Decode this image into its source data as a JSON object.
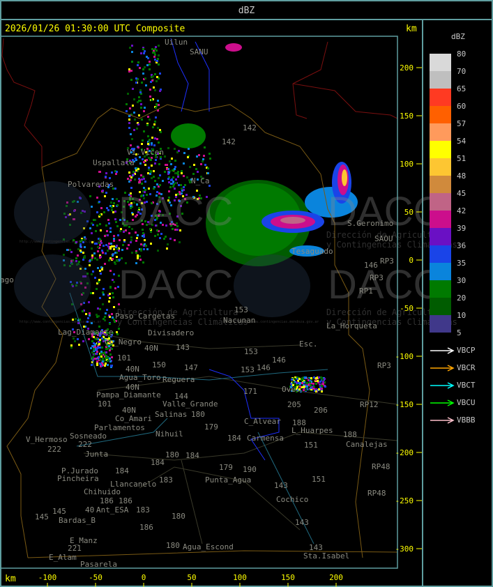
{
  "header": {
    "title": "dBZ"
  },
  "map": {
    "title": "2026/01/26 01:30:00 UTC Composite",
    "y_unit": "km",
    "x_unit": "km",
    "x_ticks": [
      "-100",
      "-50",
      "0",
      "50",
      "100",
      "150",
      "200"
    ],
    "y_ticks": [
      "200",
      "150",
      "100",
      "50",
      "0",
      "-50",
      "-100",
      "-150",
      "-200",
      "-250",
      "-300"
    ],
    "watermark": {
      "logo": "DACC",
      "line1": "Dirección de Agricultura",
      "line2": "y Contingencias Climáticas",
      "url": "http://www.contingencias.mendoza.gov.ar"
    },
    "places": [
      "Uilun",
      "SANU",
      "Uspallata",
      "Polvaredas",
      "Vi.Vicen",
      "N_Ca",
      "142",
      "142",
      "S.Geronimo",
      "SAOU",
      "Tesaguado",
      "RP3",
      "146",
      "RP3",
      "RP1",
      "153",
      "Nacunan",
      "La_Horqueta",
      "Divisadero",
      "Lag_Diamante",
      "Co_Negro",
      "Paso_Cargetas",
      "40N",
      "143",
      "153",
      "Esc.",
      "146",
      "101",
      "150",
      "147",
      "40N",
      "Agua_Toro",
      "Reguera",
      "153",
      "146",
      "Pampa_Diamante",
      "40N",
      "101",
      "144",
      "Valle_Grande",
      "171",
      "Ove.",
      "205",
      "206",
      "RP3",
      "RP12",
      "40N",
      "Co_Amari",
      "Salinas",
      "180",
      "Parlamentos",
      "Sosneado",
      "Nihuil",
      "179",
      "C_Alvear",
      "188",
      "L_Huarpes",
      "184",
      "Carmensa",
      "V_Hermoso",
      "222",
      "222",
      "Junta",
      "180",
      "184",
      "184",
      "151",
      "188",
      "Canalejas",
      "RP48",
      "P.Jurado",
      "Pincheira",
      "184",
      "Llancanelo",
      "183",
      "179",
      "190",
      "Punta_Agua",
      "151",
      "143",
      "RP48",
      "Chihuido",
      "186",
      "186",
      "40",
      "Ant_ESA",
      "183",
      "145",
      "145",
      "Bardas_B",
      "180",
      "186",
      "Cochico",
      "143",
      "E_Manz",
      "180",
      "Agua_Escond",
      "143",
      "221",
      "E_Alam",
      "Pasarela",
      "Sta.Isabel",
      "ago"
    ]
  },
  "legend": {
    "title": "dBZ",
    "scale": [
      {
        "label": "80",
        "color": "#d9d9d9"
      },
      {
        "label": "70",
        "color": "#bfbfbf"
      },
      {
        "label": "65",
        "color": "#ff3a22"
      },
      {
        "label": "60",
        "color": "#ff6000"
      },
      {
        "label": "57",
        "color": "#ff9a5c"
      },
      {
        "label": "54",
        "color": "#ffff00"
      },
      {
        "label": "51",
        "color": "#fdc632"
      },
      {
        "label": "48",
        "color": "#d08a3c"
      },
      {
        "label": "45",
        "color": "#c06486"
      },
      {
        "label": "42",
        "color": "#cc0e8c"
      },
      {
        "label": "39",
        "color": "#6a10c4"
      },
      {
        "label": "36",
        "color": "#1a44e8"
      },
      {
        "label": "35",
        "color": "#0a84dc"
      },
      {
        "label": "30",
        "color": "#007a00"
      },
      {
        "label": "20",
        "color": "#005c00"
      },
      {
        "label": "10",
        "color": "#40388a"
      }
    ],
    "bottom_label": "5",
    "radars": [
      {
        "label": "VBCP",
        "color": "#ffffff"
      },
      {
        "label": "VBCR",
        "color": "#ffa500"
      },
      {
        "label": "VBCT",
        "color": "#00ffff"
      },
      {
        "label": "VBCU",
        "color": "#00ff00"
      },
      {
        "label": "VBBB",
        "color": "#ffc0cb"
      }
    ]
  }
}
